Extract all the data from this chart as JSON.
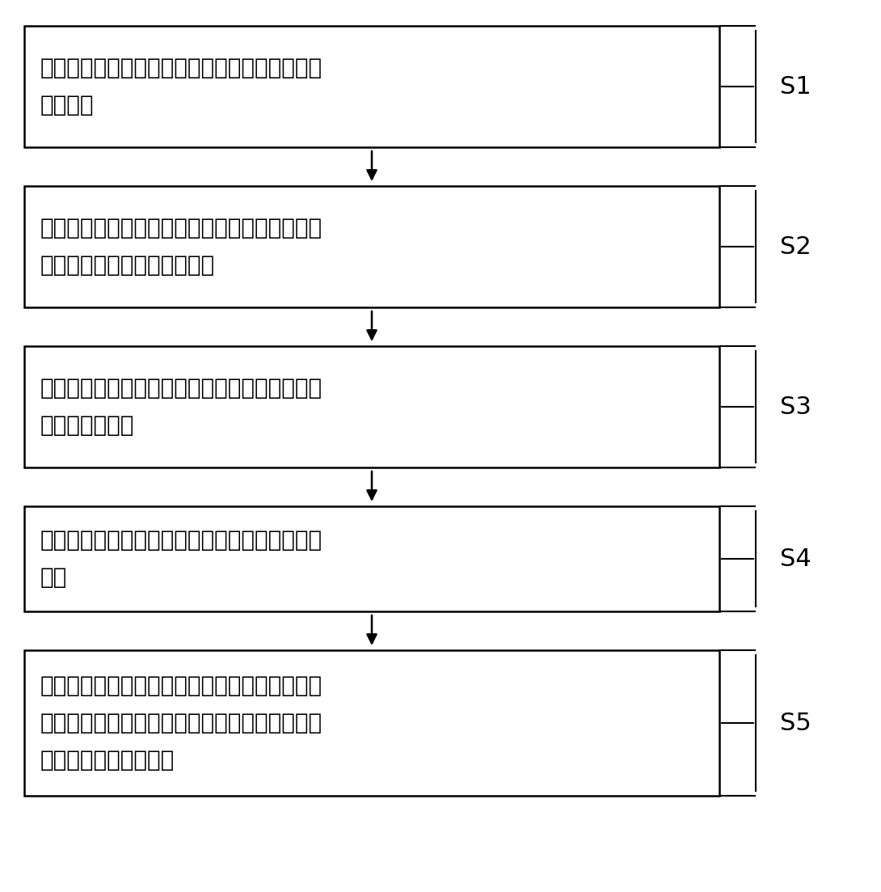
{
  "background_color": "#ffffff",
  "box_border_color": "#000000",
  "box_fill_color": "#ffffff",
  "arrow_color": "#000000",
  "label_color": "#000000",
  "font_size": 20,
  "label_font_size": 22,
  "steps": [
    {
      "id": "S1",
      "lines": [
        "发送端根据对当前信道状态的预测値，选择一种",
        "传输模式"
      ]
    },
    {
      "id": "S2",
      "lines": [
        "每个比特管道中的输入信息比特，独立进行信道",
        "编码和比特交织得到编码比特"
      ]
    },
    {
      "id": "S3",
      "lines": [
        "对多个比特管道输出的编码比特共同进行星座映",
        "射得到发送符号"
      ]
    },
    {
      "id": "S4",
      "lines": [
        "将所述发送符号经过处理后，经由信道发送到接",
        "收端"
      ]
    },
    {
      "id": "S5",
      "lines": [
        "接收端结合当前的信道状态信息和传输模式，对",
        "接收到的发送符号进行解调解码，得到各个比特",
        "管道的解调解码的结果"
      ]
    }
  ]
}
